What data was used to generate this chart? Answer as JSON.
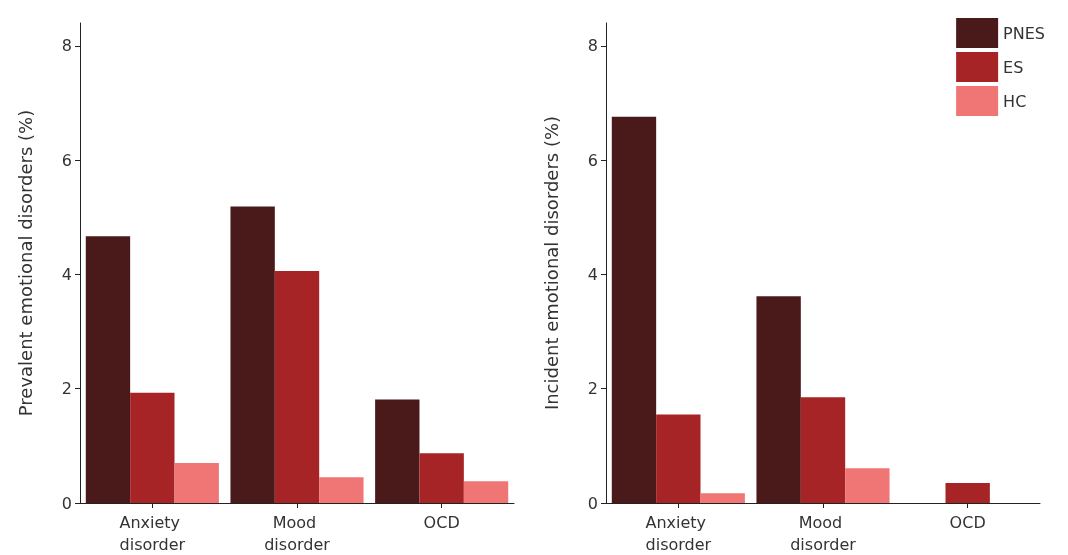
{
  "chart_data": [
    {
      "type": "bar",
      "ylabel": "Prevalent emotional disorders (%)",
      "categories": [
        "Anxiety disorder",
        "Mood disorder",
        "OCD"
      ],
      "series": [
        {
          "color": "#4a1a1a",
          "values": [
            4.67,
            5.19,
            1.81
          ]
        },
        {
          "color": "#a62426",
          "values": [
            1.93,
            4.06,
            0.87
          ]
        },
        {
          "color": "#f07575",
          "values": [
            0.7,
            0.45,
            0.38
          ]
        }
      ],
      "ylim": [
        0,
        8.4
      ],
      "yticks": [
        0,
        2,
        4,
        6,
        8
      ],
      "grid": false,
      "legend": false
    },
    {
      "type": "bar",
      "ylabel": "Incident emotional disorders (%)",
      "categories": [
        "Anxiety disorder",
        "Mood disorder",
        "OCD"
      ],
      "series": [
        {
          "name": "PNES",
          "color": "#4a1a1a",
          "values": [
            6.76,
            3.62,
            0
          ]
        },
        {
          "name": "ES",
          "color": "#a62426",
          "values": [
            1.55,
            1.85,
            0.35
          ]
        },
        {
          "name": "HC",
          "color": "#f07575",
          "values": [
            0.17,
            0.61,
            0
          ]
        }
      ],
      "ylim": [
        0,
        8.4
      ],
      "yticks": [
        0,
        2,
        4,
        6,
        8
      ],
      "grid": false,
      "legend": "top right"
    }
  ]
}
